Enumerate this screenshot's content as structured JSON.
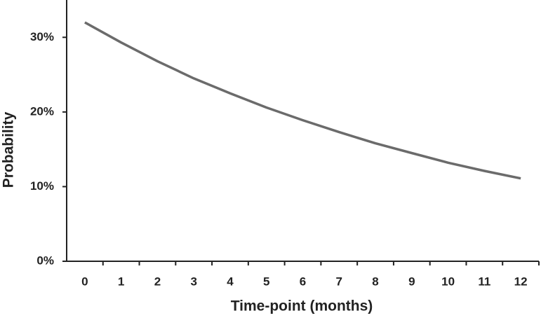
{
  "chart_data": {
    "type": "line",
    "x_label": "Time-point (months)",
    "y_label": "Probability",
    "categories": [
      "0",
      "1",
      "2",
      "3",
      "4",
      "5",
      "6",
      "7",
      "8",
      "9",
      "10",
      "11",
      "12"
    ],
    "values": [
      32,
      29.3,
      26.8,
      24.5,
      22.5,
      20.6,
      18.9,
      17.3,
      15.8,
      14.5,
      13.2,
      12.1,
      11.1
    ],
    "color": "#6b6b6b",
    "ylim": [
      0,
      35
    ],
    "yticks": [
      {
        "value": 0,
        "label": "0%"
      },
      {
        "value": 10,
        "label": "10%"
      },
      {
        "value": 20,
        "label": "20%"
      },
      {
        "value": 30,
        "label": "30%"
      }
    ],
    "grid": false
  }
}
